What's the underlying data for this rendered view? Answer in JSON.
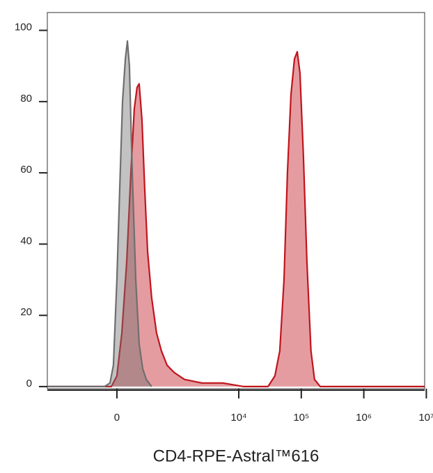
{
  "chart_data": {
    "type": "area",
    "xlabel": "CD4-RPE-Astral™616",
    "xscale": "biexponential",
    "xlim": [
      -1450,
      9400000
    ],
    "xticks": [
      0,
      {
        "value": 10000,
        "label": "10⁴"
      },
      {
        "value": 100000,
        "label": "10⁵"
      },
      {
        "value": 1000000,
        "label": "10⁶"
      },
      {
        "value": 10000000,
        "label": "10⁷"
      }
    ],
    "ylim": [
      -0.6,
      105
    ],
    "yticks": [
      0,
      20,
      40,
      60,
      80,
      100
    ],
    "series": [
      {
        "color": "#c0141c",
        "x": [
          -1450,
          -46,
          0,
          41,
          83,
          121,
          154,
          183,
          206,
          238,
          274,
          312,
          373,
          459,
          558,
          695,
          907,
          1345,
          2570,
          5560,
          12000,
          29400,
          37900,
          45300,
          53000,
          60100,
          68400,
          77800,
          86100,
          95200,
          108000,
          123000,
          143000,
          163000,
          201000,
          9400000
        ],
        "values": [
          0,
          0,
          3,
          15,
          35,
          60,
          78,
          84,
          85,
          75,
          55,
          38,
          25,
          15,
          10,
          6,
          4,
          2,
          1,
          1,
          0,
          0,
          3,
          10,
          30,
          60,
          82,
          92,
          94,
          88,
          65,
          35,
          10,
          2,
          0,
          0
        ]
      },
      {
        "color": "#6e6e6e",
        "x": [
          -1450,
          -107,
          -58,
          -29,
          0,
          23,
          47,
          71,
          89,
          107,
          134,
          169,
          206,
          247,
          293,
          373
        ],
        "values": [
          0,
          0,
          1,
          6,
          30,
          55,
          80,
          92,
          97,
          90,
          60,
          30,
          12,
          5,
          2,
          0
        ]
      }
    ]
  }
}
